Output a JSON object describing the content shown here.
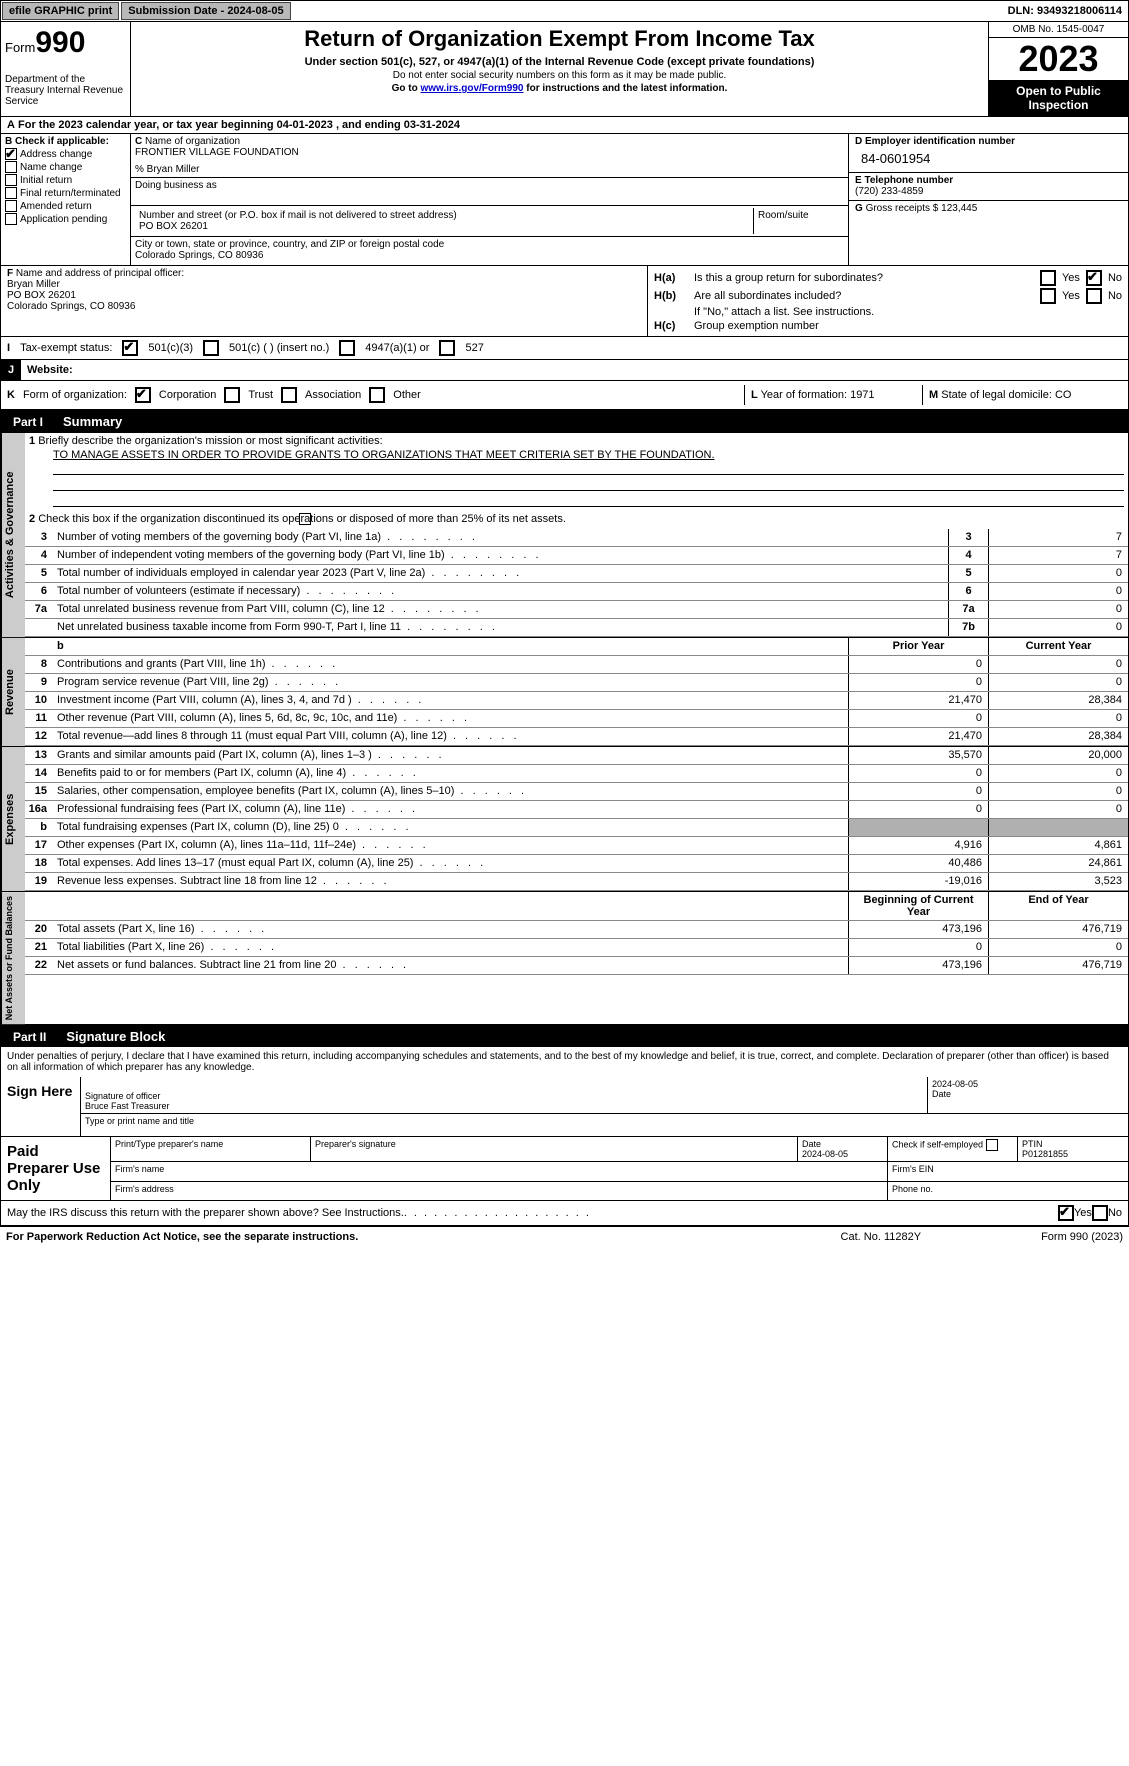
{
  "topbar": {
    "efile": "efile GRAPHIC print",
    "submission": "Submission Date - 2024-08-05",
    "dln": "DLN: 93493218006114"
  },
  "header": {
    "form_label": "Form",
    "form_number": "990",
    "dept": "Department of the Treasury Internal Revenue Service",
    "title": "Return of Organization Exempt From Income Tax",
    "subtitle": "Under section 501(c), 527, or 4947(a)(1) of the Internal Revenue Code (except private foundations)",
    "warn": "Do not enter social security numbers on this form as it may be made public.",
    "link_pre": "Go to ",
    "link": "www.irs.gov/Form990",
    "link_post": " for instructions and the latest information.",
    "omb": "OMB No. 1545-0047",
    "year": "2023",
    "open": "Open to Public Inspection"
  },
  "line_a": "For the 2023 calendar year, or tax year beginning 04-01-2023   , and ending 03-31-2024",
  "box_b": {
    "label": "Check if applicable:",
    "items": [
      "Address change",
      "Name change",
      "Initial return",
      "Final return/terminated",
      "Amended return",
      "Application pending"
    ],
    "checked": [
      true,
      false,
      false,
      false,
      false,
      false
    ]
  },
  "box_c": {
    "name_label": "Name of organization",
    "name": "FRONTIER VILLAGE FOUNDATION",
    "care": "% Bryan Miller",
    "dba_label": "Doing business as",
    "addr_label": "Number and street (or P.O. box if mail is not delivered to street address)",
    "addr": "PO BOX 26201",
    "room_label": "Room/suite",
    "city_label": "City or town, state or province, country, and ZIP or foreign postal code",
    "city": "Colorado Springs, CO   80936"
  },
  "box_d": {
    "label": "D Employer identification number",
    "val": "84-0601954"
  },
  "box_e": {
    "label": "E Telephone number",
    "val": "(720) 233-4859"
  },
  "box_g": {
    "label": "G",
    "text": "Gross receipts $ 123,445"
  },
  "box_f": {
    "label": "Name and address of principal officer:",
    "name": "Bryan Miller",
    "addr": "PO BOX 26201",
    "city": "Colorado Springs, CO  80936"
  },
  "box_h": {
    "a_label": "H(a)",
    "a_text": "Is this a group return for subordinates?",
    "b_label": "H(b)",
    "b_text": "Are all subordinates included?",
    "note": "If \"No,\" attach a list. See instructions.",
    "c_label": "H(c)",
    "c_text": "Group exemption number"
  },
  "box_i": {
    "label": "Tax-exempt status:",
    "opts": [
      "501(c)(3)",
      "501(c) (  ) (insert no.)",
      "4947(a)(1) or",
      "527"
    ]
  },
  "box_j": {
    "label": "J",
    "text": "Website:"
  },
  "box_k": {
    "label": "Form of organization:",
    "opts": [
      "Corporation",
      "Trust",
      "Association",
      "Other"
    ]
  },
  "box_l": {
    "label": "L",
    "text": "Year of formation: 1971"
  },
  "box_m": {
    "label": "M",
    "text": "State of legal domicile: CO"
  },
  "part1": {
    "tab": "Part I",
    "title": "Summary"
  },
  "summary": {
    "q1_label": "Briefly describe the organization's mission or most significant activities:",
    "q1_mission": "TO MANAGE ASSETS IN ORDER TO PROVIDE GRANTS TO ORGANIZATIONS THAT MEET CRITERIA SET BY THE FOUNDATION.",
    "q2": "Check this box      if the organization discontinued its operations or disposed of more than 25% of its net assets.",
    "governance_rows": [
      {
        "n": "3",
        "t": "Number of voting members of the governing body (Part VI, line 1a)",
        "box": "3",
        "v": "7"
      },
      {
        "n": "4",
        "t": "Number of independent voting members of the governing body (Part VI, line 1b)",
        "box": "4",
        "v": "7"
      },
      {
        "n": "5",
        "t": "Total number of individuals employed in calendar year 2023 (Part V, line 2a)",
        "box": "5",
        "v": "0"
      },
      {
        "n": "6",
        "t": "Total number of volunteers (estimate if necessary)",
        "box": "6",
        "v": "0"
      },
      {
        "n": "7a",
        "t": "Total unrelated business revenue from Part VIII, column (C), line 12",
        "box": "7a",
        "v": "0"
      },
      {
        "n": "",
        "t": "Net unrelated business taxable income from Form 990-T, Part I, line 11",
        "box": "7b",
        "v": "0"
      }
    ],
    "col_hdr_prior": "Prior Year",
    "col_hdr_curr": "Current Year",
    "revenue_rows": [
      {
        "n": "8",
        "t": "Contributions and grants (Part VIII, line 1h)",
        "p": "0",
        "c": "0"
      },
      {
        "n": "9",
        "t": "Program service revenue (Part VIII, line 2g)",
        "p": "0",
        "c": "0"
      },
      {
        "n": "10",
        "t": "Investment income (Part VIII, column (A), lines 3, 4, and 7d )",
        "p": "21,470",
        "c": "28,384"
      },
      {
        "n": "11",
        "t": "Other revenue (Part VIII, column (A), lines 5, 6d, 8c, 9c, 10c, and 11e)",
        "p": "0",
        "c": "0"
      },
      {
        "n": "12",
        "t": "Total revenue—add lines 8 through 11 (must equal Part VIII, column (A), line 12)",
        "p": "21,470",
        "c": "28,384"
      }
    ],
    "expense_rows": [
      {
        "n": "13",
        "t": "Grants and similar amounts paid (Part IX, column (A), lines 1–3 )",
        "p": "35,570",
        "c": "20,000"
      },
      {
        "n": "14",
        "t": "Benefits paid to or for members (Part IX, column (A), line 4)",
        "p": "0",
        "c": "0"
      },
      {
        "n": "15",
        "t": "Salaries, other compensation, employee benefits (Part IX, column (A), lines 5–10)",
        "p": "0",
        "c": "0"
      },
      {
        "n": "16a",
        "t": "Professional fundraising fees (Part IX, column (A), line 11e)",
        "p": "0",
        "c": "0"
      },
      {
        "n": "b",
        "t": "Total fundraising expenses (Part IX, column (D), line 25) 0",
        "p": "",
        "c": "",
        "shade": true
      },
      {
        "n": "17",
        "t": "Other expenses (Part IX, column (A), lines 11a–11d, 11f–24e)",
        "p": "4,916",
        "c": "4,861"
      },
      {
        "n": "18",
        "t": "Total expenses. Add lines 13–17 (must equal Part IX, column (A), line 25)",
        "p": "40,486",
        "c": "24,861"
      },
      {
        "n": "19",
        "t": "Revenue less expenses. Subtract line 18 from line 12",
        "p": "-19,016",
        "c": "3,523"
      }
    ],
    "col_hdr_begin": "Beginning of Current Year",
    "col_hdr_end": "End of Year",
    "net_rows": [
      {
        "n": "20",
        "t": "Total assets (Part X, line 16)",
        "p": "473,196",
        "c": "476,719"
      },
      {
        "n": "21",
        "t": "Total liabilities (Part X, line 26)",
        "p": "0",
        "c": "0"
      },
      {
        "n": "22",
        "t": "Net assets or fund balances. Subtract line 21 from line 20",
        "p": "473,196",
        "c": "476,719"
      }
    ],
    "vbar1": "Activities & Governance",
    "vbar2": "Revenue",
    "vbar3": "Expenses",
    "vbar4": "Net Assets or Fund Balances"
  },
  "part2": {
    "tab": "Part II",
    "title": "Signature Block"
  },
  "sig": {
    "declare": "Under penalties of perjury, I declare that I have examined this return, including accompanying schedules and statements, and to the best of my knowledge and belief, it is true, correct, and complete. Declaration of preparer (other than officer) is based on all information of which preparer has any knowledge.",
    "sign_here": "Sign Here",
    "sig_officer": "Signature of officer",
    "officer_name": "Bruce Fast Treasurer",
    "type_name": "Type or print name and title",
    "date_label": "Date",
    "date_val": "2024-08-05"
  },
  "prep": {
    "label": "Paid Preparer Use Only",
    "print_name": "Print/Type preparer's name",
    "prep_sig": "Preparer's signature",
    "date": "Date",
    "date_val": "2024-08-05",
    "check_self": "Check      if self-employed",
    "ptin": "PTIN",
    "ptin_val": "P01281855",
    "firm_name": "Firm's name",
    "firm_ein": "Firm's EIN",
    "firm_addr": "Firm's address",
    "phone": "Phone no."
  },
  "irs_discuss": "May the IRS discuss this return with the preparer shown above? See Instructions.",
  "footer": {
    "left": "For Paperwork Reduction Act Notice, see the separate instructions.",
    "cat": "Cat. No. 11282Y",
    "right": "Form 990 (2023)"
  }
}
